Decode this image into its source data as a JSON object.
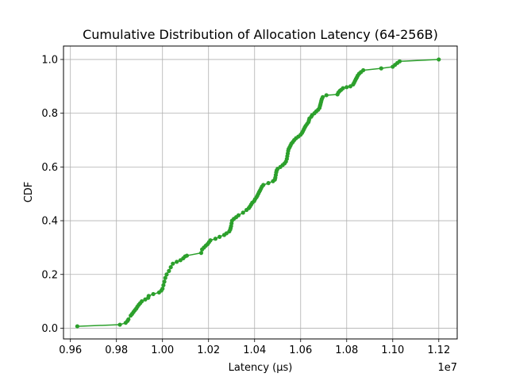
{
  "chart_data": {
    "type": "line",
    "title": "Cumulative Distribution of Allocation Latency (64-256B)",
    "xlabel": "Latency (µs)",
    "ylabel": "CDF",
    "x_offset_label": "1e7",
    "xlim": [
      9570000,
      11280000
    ],
    "ylim": [
      -0.04,
      1.05
    ],
    "x_ticks": [
      9600000,
      9800000,
      10000000,
      10200000,
      10400000,
      10600000,
      10800000,
      11000000,
      11200000
    ],
    "x_tick_labels": [
      "0.96",
      "0.98",
      "1.00",
      "1.02",
      "1.04",
      "1.06",
      "1.08",
      "1.10",
      "1.12"
    ],
    "y_ticks": [
      0.0,
      0.2,
      0.4,
      0.6,
      0.8,
      1.0
    ],
    "y_tick_labels": [
      "0.0",
      "0.2",
      "0.4",
      "0.6",
      "0.8",
      "1.0"
    ],
    "grid": true,
    "legend": "none",
    "series": [
      {
        "color": "#2ca02c",
        "marker": "circle",
        "points": [
          [
            9630000,
            0.007
          ],
          [
            9815000,
            0.013
          ],
          [
            9840000,
            0.02
          ],
          [
            9848000,
            0.027
          ],
          [
            9852000,
            0.033
          ],
          [
            9862000,
            0.047
          ],
          [
            9868000,
            0.053
          ],
          [
            9874000,
            0.06
          ],
          [
            9880000,
            0.067
          ],
          [
            9886000,
            0.073
          ],
          [
            9891000,
            0.08
          ],
          [
            9897000,
            0.087
          ],
          [
            9903000,
            0.093
          ],
          [
            9910000,
            0.1
          ],
          [
            9925000,
            0.107
          ],
          [
            9938000,
            0.113
          ],
          [
            9940000,
            0.12
          ],
          [
            9960000,
            0.127
          ],
          [
            9985000,
            0.133
          ],
          [
            9995000,
            0.14
          ],
          [
            10000000,
            0.147
          ],
          [
            10004000,
            0.16
          ],
          [
            10008000,
            0.173
          ],
          [
            10012000,
            0.187
          ],
          [
            10018000,
            0.2
          ],
          [
            10028000,
            0.213
          ],
          [
            10036000,
            0.227
          ],
          [
            10045000,
            0.24
          ],
          [
            10062000,
            0.247
          ],
          [
            10078000,
            0.253
          ],
          [
            10090000,
            0.26
          ],
          [
            10098000,
            0.267
          ],
          [
            10106000,
            0.27
          ],
          [
            10168000,
            0.28
          ],
          [
            10172000,
            0.293
          ],
          [
            10180000,
            0.3
          ],
          [
            10188000,
            0.307
          ],
          [
            10196000,
            0.313
          ],
          [
            10202000,
            0.32
          ],
          [
            10208000,
            0.327
          ],
          [
            10230000,
            0.333
          ],
          [
            10248000,
            0.34
          ],
          [
            10268000,
            0.347
          ],
          [
            10278000,
            0.353
          ],
          [
            10290000,
            0.36
          ],
          [
            10294000,
            0.367
          ],
          [
            10296000,
            0.373
          ],
          [
            10298000,
            0.38
          ],
          [
            10300000,
            0.39
          ],
          [
            10302000,
            0.4
          ],
          [
            10310000,
            0.407
          ],
          [
            10320000,
            0.413
          ],
          [
            10330000,
            0.42
          ],
          [
            10350000,
            0.43
          ],
          [
            10365000,
            0.44
          ],
          [
            10375000,
            0.447
          ],
          [
            10380000,
            0.453
          ],
          [
            10385000,
            0.46
          ],
          [
            10390000,
            0.467
          ],
          [
            10398000,
            0.473
          ],
          [
            10402000,
            0.48
          ],
          [
            10408000,
            0.487
          ],
          [
            10412000,
            0.493
          ],
          [
            10416000,
            0.5
          ],
          [
            10420000,
            0.507
          ],
          [
            10424000,
            0.513
          ],
          [
            10428000,
            0.52
          ],
          [
            10432000,
            0.527
          ],
          [
            10438000,
            0.533
          ],
          [
            10460000,
            0.54
          ],
          [
            10480000,
            0.547
          ],
          [
            10488000,
            0.553
          ],
          [
            10490000,
            0.56
          ],
          [
            10492000,
            0.57
          ],
          [
            10494000,
            0.58
          ],
          [
            10496000,
            0.587
          ],
          [
            10500000,
            0.593
          ],
          [
            10512000,
            0.6
          ],
          [
            10522000,
            0.607
          ],
          [
            10530000,
            0.613
          ],
          [
            10536000,
            0.62
          ],
          [
            10540000,
            0.63
          ],
          [
            10542000,
            0.64
          ],
          [
            10544000,
            0.65
          ],
          [
            10546000,
            0.66
          ],
          [
            10548000,
            0.667
          ],
          [
            10552000,
            0.673
          ],
          [
            10556000,
            0.68
          ],
          [
            10560000,
            0.687
          ],
          [
            10566000,
            0.693
          ],
          [
            10572000,
            0.7
          ],
          [
            10580000,
            0.707
          ],
          [
            10590000,
            0.713
          ],
          [
            10600000,
            0.72
          ],
          [
            10606000,
            0.727
          ],
          [
            10610000,
            0.733
          ],
          [
            10614000,
            0.74
          ],
          [
            10618000,
            0.747
          ],
          [
            10622000,
            0.753
          ],
          [
            10628000,
            0.76
          ],
          [
            10634000,
            0.767
          ],
          [
            10636000,
            0.773
          ],
          [
            10638000,
            0.78
          ],
          [
            10646000,
            0.787
          ],
          [
            10650000,
            0.793
          ],
          [
            10660000,
            0.8
          ],
          [
            10668000,
            0.807
          ],
          [
            10676000,
            0.813
          ],
          [
            10682000,
            0.82
          ],
          [
            10684000,
            0.827
          ],
          [
            10686000,
            0.833
          ],
          [
            10688000,
            0.84
          ],
          [
            10690000,
            0.847
          ],
          [
            10692000,
            0.853
          ],
          [
            10696000,
            0.86
          ],
          [
            10712000,
            0.867
          ],
          [
            10760000,
            0.87
          ],
          [
            10764000,
            0.877
          ],
          [
            10770000,
            0.883
          ],
          [
            10776000,
            0.887
          ],
          [
            10784000,
            0.893
          ],
          [
            10800000,
            0.897
          ],
          [
            10816000,
            0.9
          ],
          [
            10828000,
            0.907
          ],
          [
            10832000,
            0.913
          ],
          [
            10836000,
            0.92
          ],
          [
            10840000,
            0.927
          ],
          [
            10844000,
            0.933
          ],
          [
            10848000,
            0.94
          ],
          [
            10854000,
            0.947
          ],
          [
            10862000,
            0.953
          ],
          [
            10872000,
            0.96
          ],
          [
            10950000,
            0.967
          ],
          [
            11000000,
            0.973
          ],
          [
            11010000,
            0.98
          ],
          [
            11020000,
            0.987
          ],
          [
            11030000,
            0.993
          ],
          [
            11200000,
            1.0
          ]
        ]
      }
    ]
  }
}
